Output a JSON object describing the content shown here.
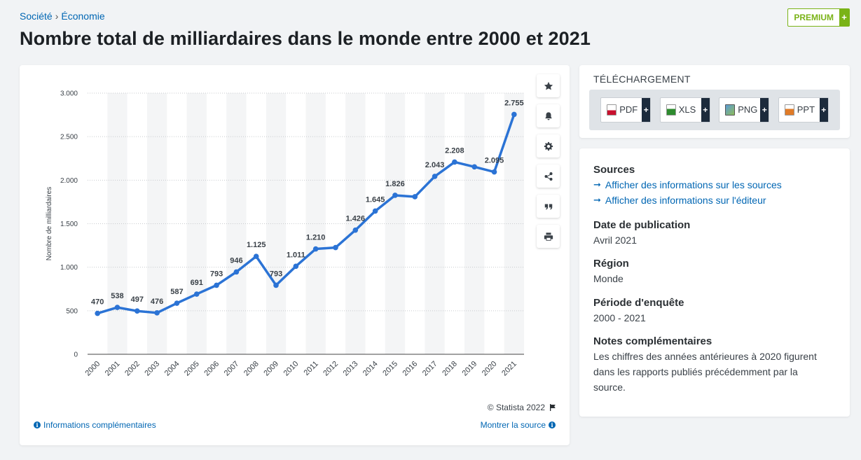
{
  "breadcrumb": {
    "item1": "Société",
    "sep": "›",
    "item2": "Économie"
  },
  "title": "Nombre total de milliardaires dans le monde entre 2000 et 2021",
  "premium": {
    "label": "PREMIUM",
    "plus": "+"
  },
  "toolbar": [
    "star-icon",
    "bell-icon",
    "gear-icon",
    "share-icon",
    "quote-icon",
    "print-icon"
  ],
  "chart_data": {
    "type": "line",
    "title": "Nombre total de milliardaires dans le monde entre 2000 et 2021",
    "ylabel": "Nombre de milliardaires",
    "xlabel": "",
    "ylim": [
      0,
      3000
    ],
    "yticks": [
      0,
      500,
      1000,
      1500,
      2000,
      2500,
      3000
    ],
    "ytick_labels": [
      "0",
      "500",
      "1.000",
      "1.500",
      "2.000",
      "2.500",
      "3.000"
    ],
    "categories": [
      "2000",
      "2001",
      "2002",
      "2003",
      "2004",
      "2005",
      "2006",
      "2007",
      "2008",
      "2009",
      "2010",
      "2011",
      "2012",
      "2013",
      "2014",
      "2015",
      "2016",
      "2017",
      "2018",
      "2019",
      "2020",
      "2021"
    ],
    "values": [
      470,
      538,
      497,
      476,
      587,
      691,
      793,
      946,
      1125,
      793,
      1011,
      1210,
      1226,
      1426,
      1645,
      1826,
      1810,
      2043,
      2208,
      2153,
      2095,
      2755
    ],
    "data_labels": [
      "470",
      "538",
      "497",
      "476",
      "587",
      "691",
      "793",
      "946",
      "1.125",
      "793",
      "1.011",
      "1.210",
      "",
      "1.426",
      "1.645",
      "1.826",
      "",
      "2.043",
      "2.208",
      "",
      "2.095",
      "2.755"
    ],
    "line_color": "#2b73d5"
  },
  "credit": "© Statista 2022",
  "footer": {
    "left": "Informations complémentaires",
    "right": "Montrer la source"
  },
  "download": {
    "title": "TÉLÉCHARGEMENT",
    "buttons": [
      {
        "name": "PDF",
        "plus": "+"
      },
      {
        "name": "XLS",
        "plus": "+"
      },
      {
        "name": "PNG",
        "plus": "+"
      },
      {
        "name": "PPT",
        "plus": "+"
      }
    ]
  },
  "info": {
    "sources_title": "Sources",
    "sources_link1": "Afficher des informations sur les sources",
    "sources_link2": "Afficher des informations sur l'éditeur",
    "pub_title": "Date de publication",
    "pub_value": "Avril 2021",
    "region_title": "Région",
    "region_value": "Monde",
    "period_title": "Période d'enquête",
    "period_value": "2000 - 2021",
    "notes_title": "Notes complémentaires",
    "notes_value": "Les chiffres des années antérieures à 2020 figurent dans les rapports publiés précédemment par la source."
  }
}
